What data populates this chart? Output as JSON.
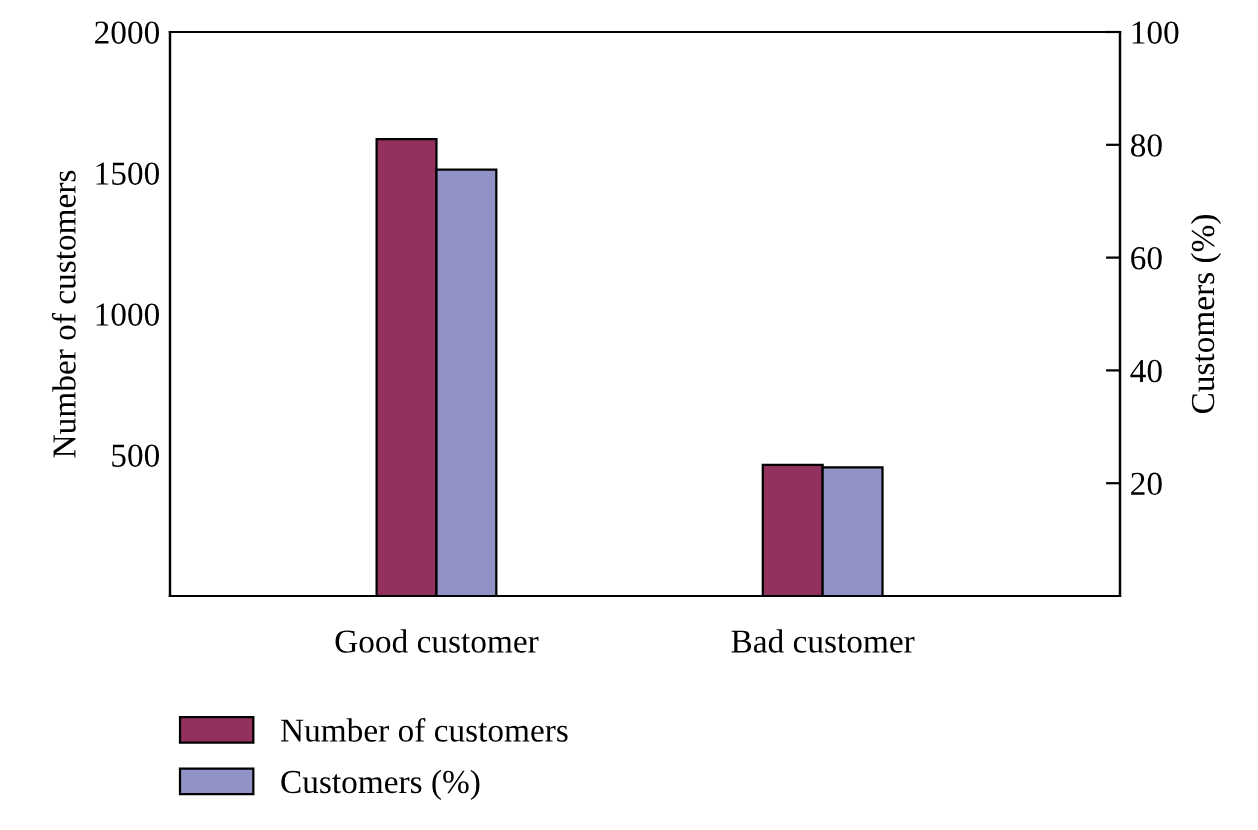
{
  "chart_data": {
    "type": "bar",
    "categories": [
      "Good customer",
      "Bad customer"
    ],
    "ylabel": "Number of customers",
    "y2label": "Customers (%)",
    "series": [
      {
        "name": "Number of customers",
        "color": "#93315e",
        "values": [
          1620,
          465
        ]
      },
      {
        "name": "Customers (%)",
        "color": "#9193c6",
        "values": [
          75.6,
          22.8
        ],
        "axis": "y2"
      }
    ],
    "ylim": [
      0,
      2000
    ],
    "yticks": [
      500,
      1000,
      1500,
      2000
    ],
    "y2lim": [
      0,
      100
    ],
    "y2ticks": [
      20,
      40,
      60,
      80,
      100
    ],
    "legend": "bottom left",
    "grid": false
  }
}
